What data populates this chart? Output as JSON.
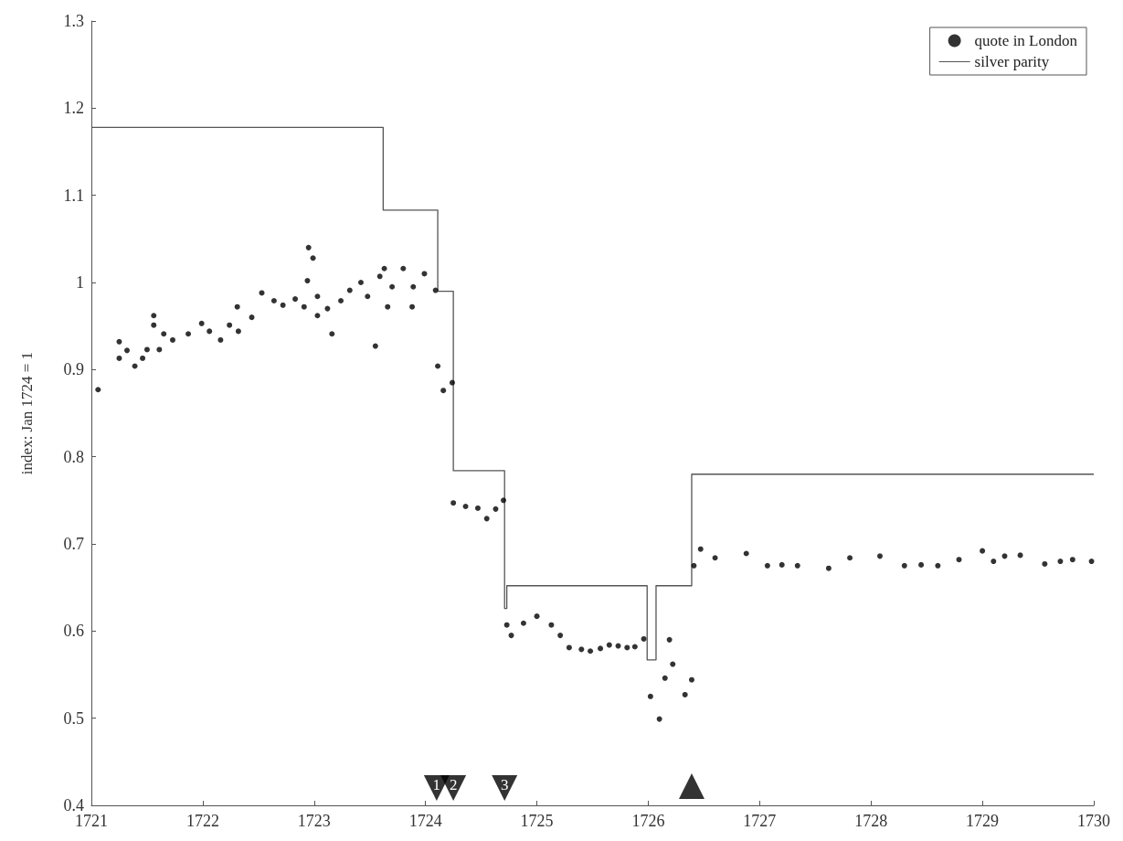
{
  "chart_data": {
    "type": "scatter",
    "ylabel": "index: Jan 1724 = 1",
    "xlim": [
      1721,
      1730
    ],
    "xticks": [
      1721,
      1722,
      1723,
      1724,
      1725,
      1726,
      1727,
      1728,
      1729,
      1730
    ],
    "ylim": [
      0.4,
      1.3
    ],
    "yticks": [
      0.4,
      0.5,
      0.6,
      0.7,
      0.8,
      0.9,
      1,
      1.1,
      1.2,
      1.3
    ],
    "grid": false,
    "legend": "top right",
    "annotations": [
      {
        "text": "1",
        "x": 1724.1,
        "y": 0.42
      },
      {
        "text": "2",
        "x": 1724.25,
        "y": 0.42
      },
      {
        "text": "3",
        "x": 1724.71,
        "y": 0.42
      }
    ],
    "series": [
      {
        "name": "quote in London",
        "marker": "circle",
        "color": "#000000",
        "x": [
          1721.06,
          1721.25,
          1721.25,
          1721.32,
          1721.39,
          1721.46,
          1721.5,
          1721.56,
          1721.56,
          1721.61,
          1721.65,
          1721.73,
          1721.87,
          1721.99,
          1722.06,
          1722.16,
          1722.24,
          1722.31,
          1722.32,
          1722.44,
          1722.53,
          1722.64,
          1722.72,
          1722.83,
          1722.91,
          1722.94,
          1722.95,
          1722.99,
          1723.03,
          1723.03,
          1723.12,
          1723.16,
          1723.24,
          1723.32,
          1723.42,
          1723.48,
          1723.55,
          1723.59,
          1723.63,
          1723.66,
          1723.7,
          1723.8,
          1723.88,
          1723.89,
          1723.99,
          1724.09,
          1724.11,
          1724.16,
          1724.24,
          1724.25,
          1724.36,
          1724.47,
          1724.55,
          1724.63,
          1724.7,
          1724.73,
          1724.77,
          1724.88,
          1725,
          1725.13,
          1725.21,
          1725.29,
          1725.4,
          1725.48,
          1725.57,
          1725.65,
          1725.73,
          1725.81,
          1725.88,
          1725.96,
          1726.02,
          1726.1,
          1726.15,
          1726.19,
          1726.22,
          1726.33,
          1726.39,
          1726.41,
          1726.47,
          1726.6,
          1726.88,
          1727.07,
          1727.2,
          1727.34,
          1727.62,
          1727.81,
          1728.08,
          1728.3,
          1728.45,
          1728.6,
          1728.79,
          1729,
          1729.1,
          1729.2,
          1729.34,
          1729.56,
          1729.7,
          1729.81,
          1729.98
        ],
        "values": [
          0.877,
          0.932,
          0.913,
          0.922,
          0.904,
          0.913,
          0.923,
          0.962,
          0.951,
          0.923,
          0.941,
          0.934,
          0.941,
          0.953,
          0.944,
          0.934,
          0.951,
          0.972,
          0.944,
          0.96,
          0.988,
          0.979,
          0.974,
          0.981,
          0.972,
          1.002,
          1.04,
          1.028,
          0.984,
          0.962,
          0.97,
          0.941,
          0.979,
          0.991,
          1,
          0.984,
          0.927,
          1.007,
          1.016,
          0.972,
          0.995,
          1.016,
          0.972,
          0.995,
          1.01,
          0.991,
          0.904,
          0.876,
          0.885,
          0.747,
          0.743,
          0.741,
          0.729,
          0.74,
          0.75,
          0.607,
          0.595,
          0.609,
          0.617,
          0.607,
          0.595,
          0.581,
          0.579,
          0.577,
          0.58,
          0.584,
          0.583,
          0.581,
          0.582,
          0.591,
          0.525,
          0.499,
          0.546,
          0.59,
          0.562,
          0.527,
          0.544,
          0.675,
          0.694,
          0.684,
          0.689,
          0.675,
          0.676,
          0.675,
          0.672,
          0.684,
          0.686,
          0.675,
          0.676,
          0.675,
          0.682,
          0.692,
          0.68,
          0.686,
          0.687,
          0.677,
          0.68,
          0.682,
          0.68
        ]
      },
      {
        "name": "silver parity",
        "type": "step",
        "color": "#555555",
        "x": [
          1721,
          1723.62,
          1724.11,
          1724.25,
          1724.71,
          1724.73,
          1725.99,
          1726.07,
          1726.39,
          1730
        ],
        "values": [
          1.178,
          1.083,
          0.99,
          0.784,
          0.626,
          0.652,
          0.567,
          0.652,
          0.78,
          0.78
        ]
      },
      {
        "type": "scatter",
        "marker": "triangle",
        "color": "#000000",
        "x": [
          1724.1,
          1724.25,
          1724.71
        ],
        "values": [
          0.42,
          0.42,
          0.42
        ]
      },
      {
        "type": "scatter",
        "marker": "triangle",
        "color": "#000000",
        "x": [
          1726.39
        ],
        "values": [
          0.422
        ]
      }
    ]
  }
}
